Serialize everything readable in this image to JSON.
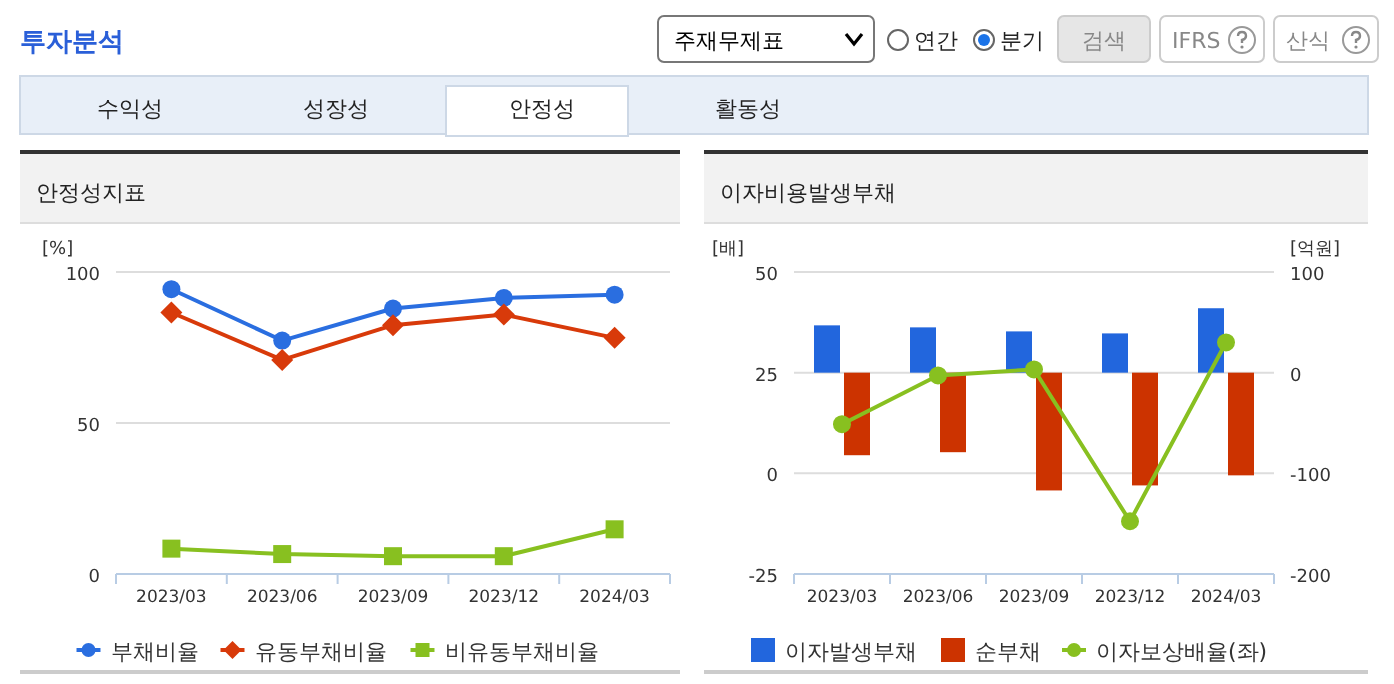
{
  "chart_data": [
    {
      "type": "other",
      "title": "투자분석",
      "annotations": [
        "주재무제표",
        "연간",
        "분기",
        "검색",
        "IFRS",
        "산식",
        "수익성",
        "성장성",
        "안정성",
        "활동성"
      ]
    },
    {
      "type": "line",
      "title": "안정성지표",
      "ylabel": "[%]",
      "categories": [
        "2023/03",
        "2023/06",
        "2023/09",
        "2023/12",
        "2024/03"
      ],
      "ylim": [
        0,
        100
      ],
      "yticks": [
        0,
        50,
        100
      ],
      "grid": "y",
      "legend": "bottom",
      "series": [
        {
          "name": "부채비율",
          "color": "#2a6ee0",
          "marker": "circle",
          "values": [
            94.3,
            77.3,
            87.9,
            91.4,
            92.5
          ]
        },
        {
          "name": "유동부채비율",
          "color": "#d83a0a",
          "marker": "diamond",
          "values": [
            86.6,
            70.9,
            82.4,
            85.9,
            78.2
          ]
        },
        {
          "name": "비유동부채비율",
          "color": "#88c020",
          "marker": "square",
          "values": [
            8.4,
            6.6,
            5.9,
            5.9,
            14.8
          ]
        }
      ]
    },
    {
      "type": "bar",
      "title": "이자비용발생부채",
      "ylabel": "[배]",
      "y2label": "[억원]",
      "categories": [
        "2023/03",
        "2023/06",
        "2023/09",
        "2023/12",
        "2024/03"
      ],
      "ylim": [
        -25,
        50
      ],
      "yticks": [
        -25,
        0,
        25,
        50
      ],
      "y2lim": [
        -200,
        100
      ],
      "y2ticks": [
        -200,
        -100,
        0,
        100
      ],
      "grid": "y",
      "legend": "bottom",
      "series": [
        {
          "name": "이자발생부채",
          "color": "#2266dd",
          "axis": "y2",
          "values": [
            47,
            45,
            41,
            39,
            64
          ]
        },
        {
          "name": "순부채",
          "color": "#cc3300",
          "axis": "y2",
          "values": [
            -82,
            -79,
            -117,
            -112,
            -102
          ]
        },
        {
          "name": "이자보상배율(좌)",
          "color": "#88c020",
          "type": "line",
          "marker": "circle",
          "values": [
            12.2,
            24.3,
            25.8,
            -11.9,
            32.5
          ]
        }
      ]
    }
  ]
}
